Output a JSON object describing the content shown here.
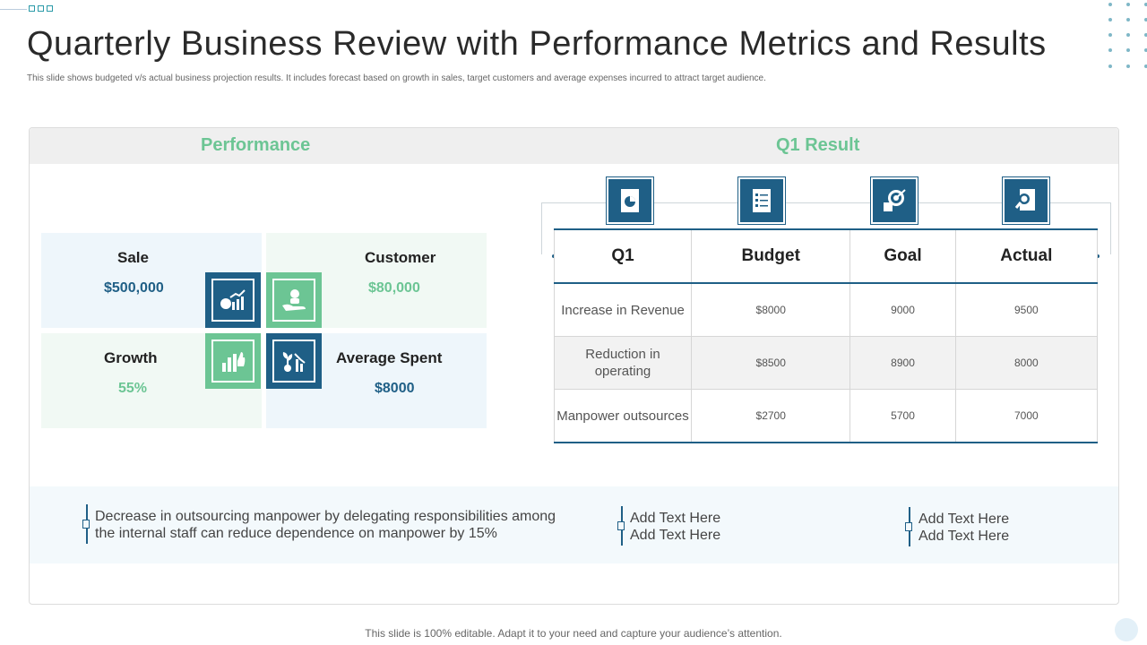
{
  "slide": {
    "title": "Quarterly Business Review with Performance Metrics and Results",
    "subtitle": "This slide shows budgeted v/s actual business projection results. It includes forecast based on growth in sales, target customers  and average expenses incurred to attract target audience.",
    "footer": "This slide is 100% editable. Adapt it to your need and capture your audience’s attention."
  },
  "panel": {
    "performance_heading": "Performance",
    "results_heading": "Q1 Result"
  },
  "performance": {
    "sale": {
      "label": "Sale",
      "value": "$500,000",
      "icon": "money-growth-icon"
    },
    "customer": {
      "label": "Customer",
      "value": "$80,000",
      "icon": "hand-user-icon"
    },
    "growth": {
      "label": "Growth",
      "value": "55%",
      "icon": "thumbs-up-chart-icon"
    },
    "average_spent": {
      "label": "Average Spent",
      "value": "$8000",
      "icon": "plant-decline-icon"
    }
  },
  "results_table": {
    "headers": [
      "Q1",
      "Budget",
      "Goal",
      "Actual"
    ],
    "header_icons": [
      "report-icon",
      "checklist-icon",
      "target-icon",
      "document-search-icon"
    ],
    "rows": [
      {
        "metric": "Increase  in Revenue",
        "budget": "$8000",
        "goal": "9000",
        "actual": "9500"
      },
      {
        "metric": "Reduction in operating",
        "budget": "$8500",
        "goal": "8900",
        "actual": "8000"
      },
      {
        "metric": "Manpower outsources",
        "budget": "$2700",
        "goal": "5700",
        "actual": "7000"
      }
    ]
  },
  "notes": [
    {
      "line1": "Decrease in outsourcing manpower by delegating responsibilities among",
      "line2": "the internal staff can reduce dependence on manpower by 15%"
    },
    {
      "line1": "Add Text Here",
      "line2": "Add Text Here"
    },
    {
      "line1": "Add Text Here",
      "line2": "Add Text Here"
    }
  ],
  "colors": {
    "primary_blue": "#1f5f86",
    "accent_green": "#6cc594"
  }
}
